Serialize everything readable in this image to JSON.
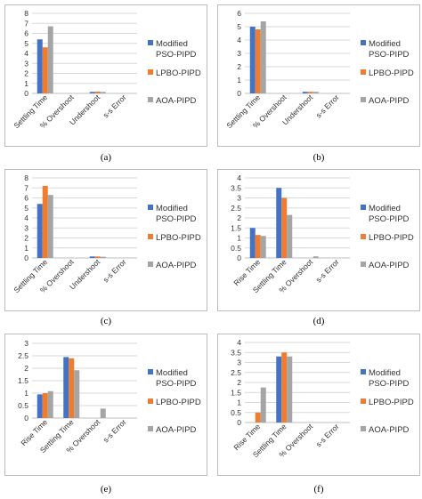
{
  "colors": {
    "series": [
      "#4472C4",
      "#ED7D31",
      "#A5A5A5"
    ],
    "grid": "#d9d9d9",
    "axis": "#bfbfbf"
  },
  "captions": [
    "(a)",
    "(b)",
    "(c)",
    "(d)",
    "(e)",
    "(f)"
  ],
  "legend": [
    {
      "line1": "Modified",
      "line2": "PSO-PIPD"
    },
    {
      "line1": "LPBO-PIPD",
      "line2": ""
    },
    {
      "line1": "AOA-PIPD",
      "line2": ""
    }
  ],
  "chart_data": [
    {
      "type": "bar",
      "categories": [
        "Settling Time",
        "% Overshoot",
        "Undershoot",
        "s-s Error"
      ],
      "series": [
        {
          "name": "Modified PSO-PIPD",
          "values": [
            5.4,
            0,
            0.15,
            0
          ]
        },
        {
          "name": "LPBO-PIPD",
          "values": [
            4.6,
            0,
            0.18,
            0
          ]
        },
        {
          "name": "AOA-PIPD",
          "values": [
            6.7,
            0,
            0.15,
            0
          ]
        }
      ],
      "ylim": [
        0,
        8
      ],
      "yticks": [
        "0",
        "1",
        "2",
        "3",
        "4",
        "5",
        "6",
        "7",
        "8"
      ],
      "legend_position": "right",
      "grid": true
    },
    {
      "type": "bar",
      "categories": [
        "Settling Time",
        "% Overshoot",
        "Undershoot",
        "s-s Error"
      ],
      "series": [
        {
          "name": "Modified PSO-PIPD",
          "values": [
            5.0,
            0,
            0.12,
            0
          ]
        },
        {
          "name": "LPBO-PIPD",
          "values": [
            4.8,
            0,
            0.12,
            0
          ]
        },
        {
          "name": "AOA-PIPD",
          "values": [
            5.4,
            0,
            0.12,
            0
          ]
        }
      ],
      "ylim": [
        0,
        6
      ],
      "yticks": [
        "0",
        "1",
        "2",
        "3",
        "4",
        "5",
        "6"
      ],
      "legend_position": "right",
      "grid": true
    },
    {
      "type": "bar",
      "categories": [
        "Settling Time",
        "% Overshoot",
        "Undershoot",
        "s-s Error"
      ],
      "series": [
        {
          "name": "Modified PSO-PIPD",
          "values": [
            5.4,
            0,
            0.15,
            0
          ]
        },
        {
          "name": "LPBO-PIPD",
          "values": [
            7.2,
            0,
            0.15,
            0
          ]
        },
        {
          "name": "AOA-PIPD",
          "values": [
            6.3,
            0,
            0.12,
            0
          ]
        }
      ],
      "ylim": [
        0,
        8
      ],
      "yticks": [
        "0",
        "1",
        "2",
        "3",
        "4",
        "5",
        "6",
        "7",
        "8"
      ],
      "legend_position": "right",
      "grid": true
    },
    {
      "type": "bar",
      "categories": [
        "Rise Time",
        "Settling Time",
        "% Overshoot",
        "s-s Error"
      ],
      "series": [
        {
          "name": "Modified PSO-PIPD",
          "values": [
            1.5,
            3.5,
            0,
            0
          ]
        },
        {
          "name": "LPBO-PIPD",
          "values": [
            1.15,
            3.0,
            0,
            0
          ]
        },
        {
          "name": "AOA-PIPD",
          "values": [
            1.1,
            2.15,
            0.08,
            0
          ]
        }
      ],
      "ylim": [
        0,
        4
      ],
      "yticks": [
        "0",
        "0.5",
        "1",
        "1.5",
        "2",
        "2.5",
        "3",
        "3.5",
        "4"
      ],
      "legend_position": "right",
      "grid": true
    },
    {
      "type": "bar",
      "categories": [
        "Rise Time",
        "Settling Time",
        "% Overshoot",
        "s-s Error"
      ],
      "series": [
        {
          "name": "Modified PSO-PIPD",
          "values": [
            0.95,
            2.45,
            0,
            0
          ]
        },
        {
          "name": "LPBO-PIPD",
          "values": [
            1.0,
            2.4,
            0,
            0
          ]
        },
        {
          "name": "AOA-PIPD",
          "values": [
            1.08,
            1.92,
            0.38,
            0
          ]
        }
      ],
      "ylim": [
        0,
        3
      ],
      "yticks": [
        "0",
        "0.5",
        "1",
        "1.5",
        "2",
        "2.5",
        "3"
      ],
      "legend_position": "right",
      "grid": true
    },
    {
      "type": "bar",
      "categories": [
        "Rise Time",
        "Settling Time",
        "% Overshoot",
        "s-s Error"
      ],
      "series": [
        {
          "name": "Modified PSO-PIPD",
          "values": [
            0,
            3.3,
            0,
            0
          ]
        },
        {
          "name": "LPBO-PIPD",
          "values": [
            0.5,
            3.5,
            0,
            0
          ]
        },
        {
          "name": "AOA-PIPD",
          "values": [
            1.75,
            3.3,
            0,
            0
          ]
        }
      ],
      "ylim": [
        0,
        4
      ],
      "yticks": [
        "0",
        "0.5",
        "1",
        "1.5",
        "2",
        "2.5",
        "3",
        "3.5",
        "4"
      ],
      "legend_position": "right",
      "grid": true
    }
  ]
}
